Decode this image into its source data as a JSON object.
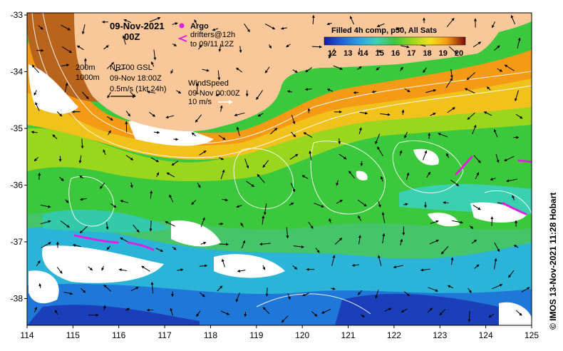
{
  "header": {
    "date": "09-Nov-2021",
    "hour": "00Z",
    "argo_label": "Argo",
    "drifters_line1": "drifters@12h",
    "drifters_line2": "to 09/11 12Z"
  },
  "isobaths": {
    "line1": "200m",
    "line2": "1000m"
  },
  "currents": {
    "line1": "NRT00 GSL",
    "line2": "09-Nov 18:00Z",
    "line3": "0.5m/s (1kt 24h)"
  },
  "wind": {
    "line1": "WindSpeed",
    "line2": "09-Nov 00:00Z",
    "line3": "10 m/s"
  },
  "colorbar": {
    "title": "Filled 4h comp, p50, All Sats",
    "ticks": [
      "12",
      "13",
      "14",
      "15",
      "16",
      "17",
      "18",
      "19",
      "20"
    ],
    "colors": [
      "#1a1aa8",
      "#1f5fd6",
      "#2aa3e6",
      "#3fd0b8",
      "#3cc83c",
      "#9ad61e",
      "#f2e21c",
      "#f59a14",
      "#c43a10",
      "#7a0a05"
    ]
  },
  "axes": {
    "x_labels": [
      "114",
      "115",
      "116",
      "117",
      "118",
      "119",
      "120",
      "121",
      "122",
      "123",
      "124",
      "125"
    ],
    "y_labels": [
      "-33",
      "-34",
      "-35",
      "-36",
      "-37",
      "-38"
    ]
  },
  "credit": "© IMOS 13-Nov-2021 11:28 Hobart",
  "colors": {
    "land": "#f8c79a",
    "drifter": "#e020e0",
    "isobath": "#ffffff"
  }
}
